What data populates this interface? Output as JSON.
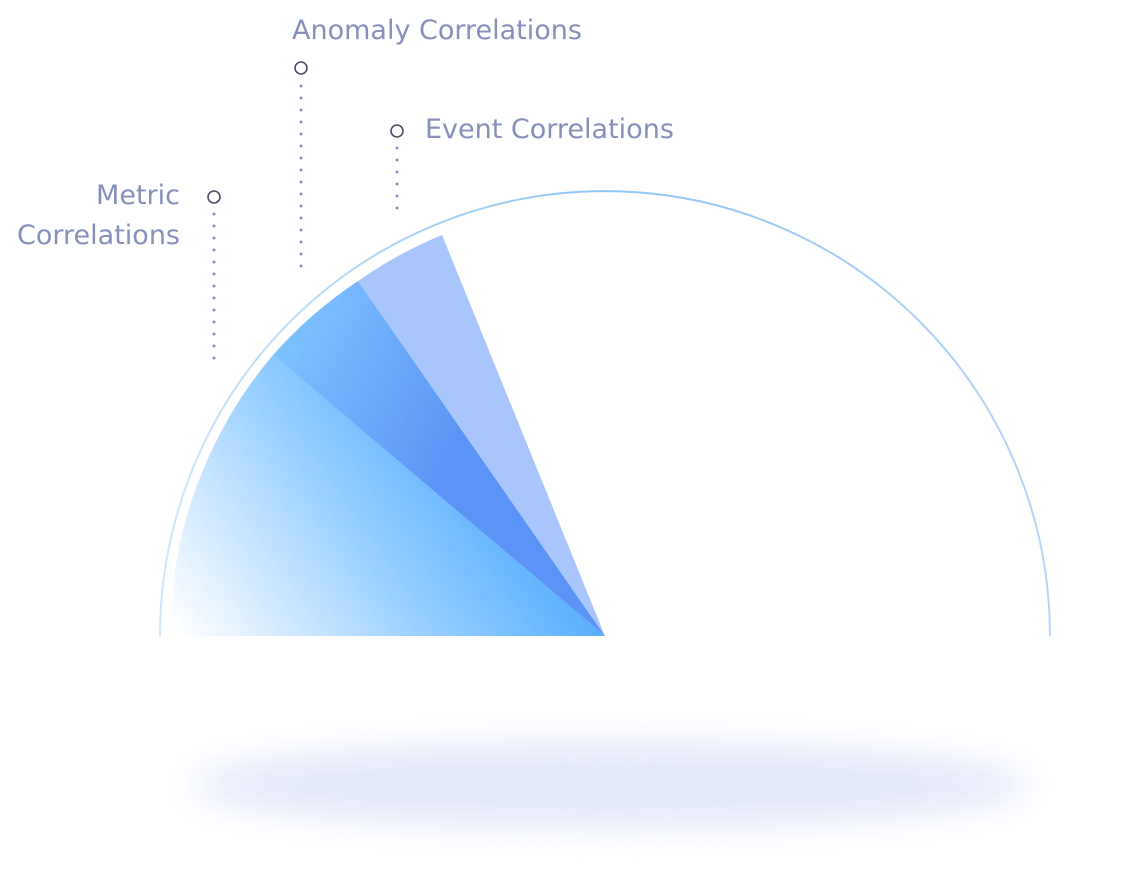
{
  "labels": {
    "anomaly": "Anomaly Correlations",
    "event": "Event Correlations",
    "metric": "Metric Correlations"
  }
}
